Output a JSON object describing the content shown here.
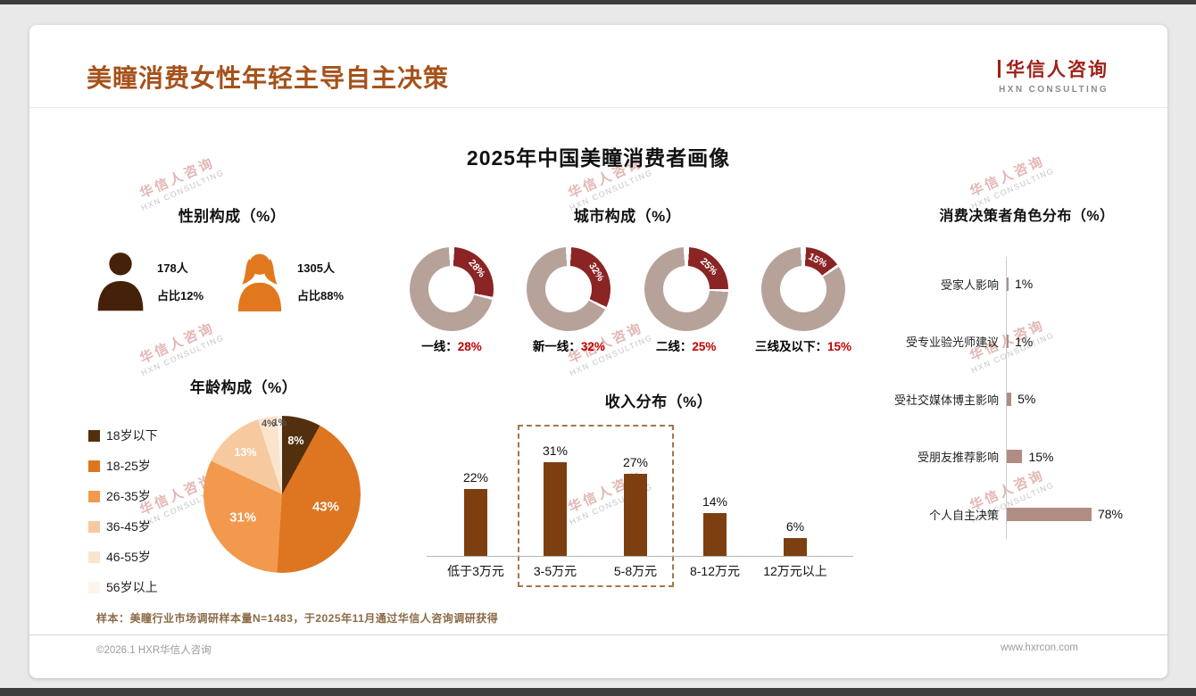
{
  "page": {
    "title": "美瞳消费女性年轻主导自主决策",
    "logo": {
      "cn": "华信人咨询",
      "en": "HXN CONSULTING"
    },
    "main_title": "2025年中国美瞳消费者画像",
    "footnote": "样本：美瞳行业市场调研样本量N=1483，于2025年11月通过华信人咨询调研获得",
    "footer_left": "©2026.1 HXR华信人咨询",
    "footer_right": "www.hxrcon.com",
    "watermark": {
      "cn": "华信人咨询",
      "en": "HXN CONSULTING"
    }
  },
  "colors": {
    "title_brown": "#A5521B",
    "logo_red": "#9E1F17",
    "donut_segment_red": "#8B2424",
    "donut_rest_taupe": "#B7A29A",
    "city_value_red": "#C00000",
    "decision_bar_taupe": "#B08D82",
    "income_bar_brown": "#7D3F10",
    "male_icon": "#45210A",
    "female_icon": "#E2781E"
  },
  "chart_data": [
    {
      "id": "gender",
      "type": "table",
      "title": "性别构成（%）",
      "items": [
        {
          "gender": "male",
          "count": "178人",
          "share": "占比12%"
        },
        {
          "gender": "female",
          "count": "1305人",
          "share": "占比88%"
        }
      ]
    },
    {
      "id": "city",
      "type": "pie",
      "subtype": "donut-set",
      "title": "城市构成（%）",
      "items": [
        {
          "label": "一线：",
          "value": 28,
          "value_text": "28%"
        },
        {
          "label": "新一线：",
          "value": 32,
          "value_text": "32%"
        },
        {
          "label": "二线：",
          "value": 25,
          "value_text": "25%"
        },
        {
          "label": "三线及以下：",
          "value": 15,
          "value_text": "15%"
        }
      ],
      "segment_color": "#8B2424",
      "rest_color": "#B7A29A"
    },
    {
      "id": "decision",
      "type": "bar",
      "orientation": "horizontal",
      "title": "消费决策者角色分布（%）",
      "categories": [
        "受家人影响",
        "受专业验光师建议",
        "受社交媒体博主影响",
        "受朋友推荐影响",
        "个人自主决策"
      ],
      "values": [
        1,
        1,
        5,
        15,
        78
      ],
      "value_texts": [
        "1%",
        "1%",
        "5%",
        "15%",
        "78%"
      ],
      "bar_color": "#B08D82",
      "xlim": [
        0,
        80
      ],
      "legend_position": "none",
      "grid": false
    },
    {
      "id": "age",
      "type": "pie",
      "title": "年龄构成（%）",
      "categories": [
        "18岁以下",
        "18-25岁",
        "26-35岁",
        "36-45岁",
        "46-55岁",
        "56岁以上"
      ],
      "values": [
        8,
        43,
        31,
        13,
        4,
        1
      ],
      "value_texts": [
        "8%",
        "43%",
        "31%",
        "13%",
        "4%",
        "1%"
      ],
      "colors": [
        "#53300D",
        "#DE7521",
        "#F2994D",
        "#F6C99F",
        "#FAE4CC",
        "#FDF4EA"
      ],
      "label_colors": [
        "#ffffff",
        "#ffffff",
        "#ffffff",
        "#ffffff",
        "#555555",
        "#555555"
      ],
      "legend_position": "left"
    },
    {
      "id": "income",
      "type": "bar",
      "orientation": "vertical",
      "title": "收入分布（%）",
      "categories": [
        "低于3万元",
        "3-5万元",
        "5-8万元",
        "8-12万元",
        "12万元以上"
      ],
      "values": [
        22,
        31,
        27,
        14,
        6
      ],
      "value_texts": [
        "22%",
        "31%",
        "27%",
        "14%",
        "6%"
      ],
      "bar_color": "#7D3F10",
      "highlight": {
        "categories": [
          "3-5万元",
          "5-8万元"
        ],
        "style": "dashed-box"
      },
      "ylim": [
        0,
        35
      ],
      "grid": false
    }
  ]
}
